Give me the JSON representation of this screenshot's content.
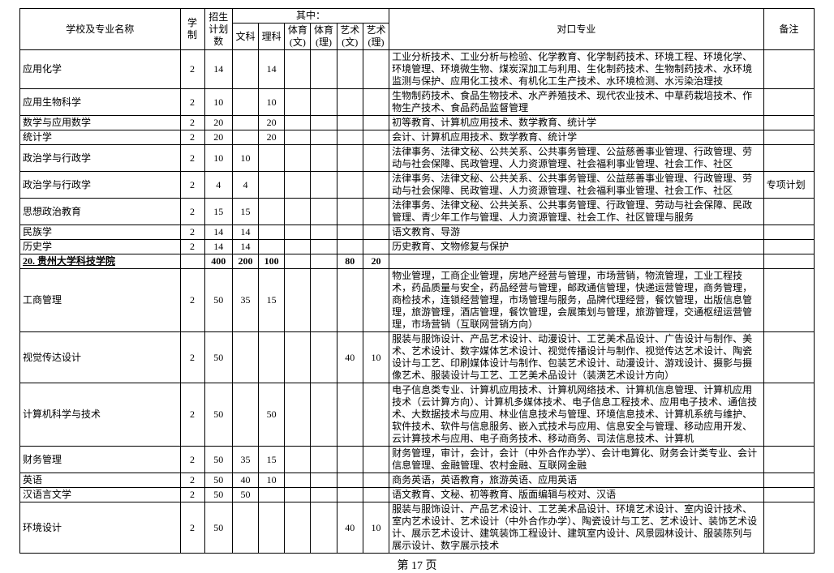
{
  "page_number_label": "第 17 页",
  "header": {
    "school_major": "学校及专业名称",
    "system": "学制",
    "plan": "招生\n计划\n数",
    "qizhong": "其中：",
    "wen": "文科",
    "li": "理科",
    "ty_wen": "体育\n(文)",
    "ty_li": "体育\n(理)",
    "ys_wen": "艺术\n(文)",
    "ys_li": "艺术\n(理)",
    "duikou": "对口专业",
    "beizhu": "备注"
  },
  "rows": [
    {
      "name": "应用化学",
      "sys": "2",
      "plan": "14",
      "wen": "",
      "li": "14",
      "tyw": "",
      "tyl": "",
      "ysw": "",
      "ysl": "",
      "dk": "工业分析技术、工业分析与检验、化学教育、化学制药技术、环境工程、环境化学、环境管理、环境微生物、煤炭深加工与利用、生化制药技术、生物制药技术、水环境监测与保护、应用化工技术、有机化工生产技术、水环境检测、水污染治理技",
      "bz": ""
    },
    {
      "name": "应用生物科学",
      "sys": "2",
      "plan": "10",
      "wen": "",
      "li": "10",
      "tyw": "",
      "tyl": "",
      "ysw": "",
      "ysl": "",
      "dk": "生物制药技术、食品生物技术、水产养殖技术、现代农业技术、中草药栽培技术、作物生产技术、食品药品监督管理",
      "bz": ""
    },
    {
      "name": "数学与应用数学",
      "sys": "2",
      "plan": "20",
      "wen": "",
      "li": "20",
      "tyw": "",
      "tyl": "",
      "ysw": "",
      "ysl": "",
      "dk": "初等教育、计算机应用技术、数学教育、统计学",
      "bz": ""
    },
    {
      "name": "统计学",
      "sys": "2",
      "plan": "20",
      "wen": "",
      "li": "20",
      "tyw": "",
      "tyl": "",
      "ysw": "",
      "ysl": "",
      "dk": "会计、计算机应用技术、数学教育、统计学",
      "bz": ""
    },
    {
      "name": "政治学与行政学",
      "sys": "2",
      "plan": "10",
      "wen": "10",
      "li": "",
      "tyw": "",
      "tyl": "",
      "ysw": "",
      "ysl": "",
      "dk": "法律事务、法律文秘、公共关系、公共事务管理、公益慈善事业管理、行政管理、劳动与社会保障、民政管理、人力资源管理、社会福利事业管理、社会工作、社区",
      "bz": ""
    },
    {
      "name": "政治学与行政学",
      "sys": "2",
      "plan": "4",
      "wen": "4",
      "li": "",
      "tyw": "",
      "tyl": "",
      "ysw": "",
      "ysl": "",
      "dk": "法律事务、法律文秘、公共关系、公共事务管理、公益慈善事业管理、行政管理、劳动与社会保障、民政管理、人力资源管理、社会福利事业管理、社会工作、社区",
      "bz": "专项计划"
    },
    {
      "name": "思想政治教育",
      "sys": "2",
      "plan": "15",
      "wen": "15",
      "li": "",
      "tyw": "",
      "tyl": "",
      "ysw": "",
      "ysl": "",
      "dk": "法律事务、法律文秘、公共关系、公共事务管理、行政管理、劳动与社会保障、民政管理、青少年工作与管理、人力资源管理、社会工作、社区管理与服务",
      "bz": ""
    },
    {
      "name": "民族学",
      "sys": "2",
      "plan": "14",
      "wen": "14",
      "li": "",
      "tyw": "",
      "tyl": "",
      "ysw": "",
      "ysl": "",
      "dk": "语文教育、导游",
      "bz": ""
    },
    {
      "name": "历史学",
      "sys": "2",
      "plan": "14",
      "wen": "14",
      "li": "",
      "tyw": "",
      "tyl": "",
      "ysw": "",
      "ysl": "",
      "dk": "历史教育、文物修复与保护",
      "bz": ""
    },
    {
      "name": "20. 贵州大学科技学院",
      "sys": "",
      "plan": "400",
      "wen": "200",
      "li": "100",
      "tyw": "",
      "tyl": "",
      "ysw": "80",
      "ysl": "20",
      "dk": "",
      "bz": "",
      "school": true
    },
    {
      "name": "工商管理",
      "sys": "2",
      "plan": "50",
      "wen": "35",
      "li": "15",
      "tyw": "",
      "tyl": "",
      "ysw": "",
      "ysl": "",
      "dk": "物业管理，工商企业管理，房地产经营与管理，市场营销，物流管理，工业工程技术，药品质量与安全，药品经营与管理，邮政通信管理，快递运营管理，商务管理，商检技术，连锁经营管理，市场管理与服务，品牌代理经营，餐饮管理，出版信息管理，旅游管理，酒店管理，餐饮管理，会展策划与管理，旅游管理，交通枢纽运营管理，市场营销（互联网营销方向）",
      "bz": ""
    },
    {
      "name": "视觉传达设计",
      "sys": "2",
      "plan": "50",
      "wen": "",
      "li": "",
      "tyw": "",
      "tyl": "",
      "ysw": "40",
      "ysl": "10",
      "dk": "服装与服饰设计、产品艺术设计、动漫设计、工艺美术品设计、广告设计与制作、美术、艺术设计、数字媒体艺术设计、视觉传播设计与制作、视觉传达艺术设计、陶瓷设计与工艺、印刷媒体设计与制作、包装艺术设计、动漫设计、游戏设计、摄影与摄像艺术、服装设计与工艺、工艺美术品设计（装潢艺术设计方向）",
      "bz": ""
    },
    {
      "name": "计算机科学与技术",
      "sys": "2",
      "plan": "50",
      "wen": "",
      "li": "50",
      "tyw": "",
      "tyl": "",
      "ysw": "",
      "ysl": "",
      "dk": "电子信息类专业、计算机应用技术、计算机网络技术、计算机信息管理、计算机应用技术（云计算方向）、计算机多媒体技术、电子信息工程技术、应用电子技术、通信技术、大数据技术与应用、林业信息技术与管理、环境信息技术、计算机系统与维护、软件技术、软件与信息服务、嵌入式技术与应用、信息安全与管理、移动应用开发、云计算技术与应用、电子商务技术、移动商务、司法信息技术、计算机",
      "bz": ""
    },
    {
      "name": "财务管理",
      "sys": "2",
      "plan": "50",
      "wen": "35",
      "li": "15",
      "tyw": "",
      "tyl": "",
      "ysw": "",
      "ysl": "",
      "dk": "财务管理，审计，会计，会计（中外合作办学）、会计电算化、财务会计类专业、会计信息管理、金融管理、农村金融、互联网金融",
      "bz": ""
    },
    {
      "name": "英语",
      "sys": "2",
      "plan": "50",
      "wen": "40",
      "li": "10",
      "tyw": "",
      "tyl": "",
      "ysw": "",
      "ysl": "",
      "dk": "商务英语，英语教育，旅游英语、应用英语",
      "bz": ""
    },
    {
      "name": "汉语言文学",
      "sys": "2",
      "plan": "50",
      "wen": "50",
      "li": "",
      "tyw": "",
      "tyl": "",
      "ysw": "",
      "ysl": "",
      "dk": "语文教育、文秘、初等教育、版面编辑与校对、汉语",
      "bz": ""
    },
    {
      "name": "环境设计",
      "sys": "2",
      "plan": "50",
      "wen": "",
      "li": "",
      "tyw": "",
      "tyl": "",
      "ysw": "40",
      "ysl": "10",
      "dk": "服装与服饰设计、产品艺术设计、工艺美术品设计、环境艺术设计、室内设计技术、室内艺术设计、艺术设计（中外合作办学）、陶瓷设计与工艺、艺术设计、装饰艺术设计、展示艺术设计、建筑装饰工程设计、建筑室内设计、风景园林设计、服装陈列与展示设计、数字展示技术",
      "bz": ""
    }
  ]
}
